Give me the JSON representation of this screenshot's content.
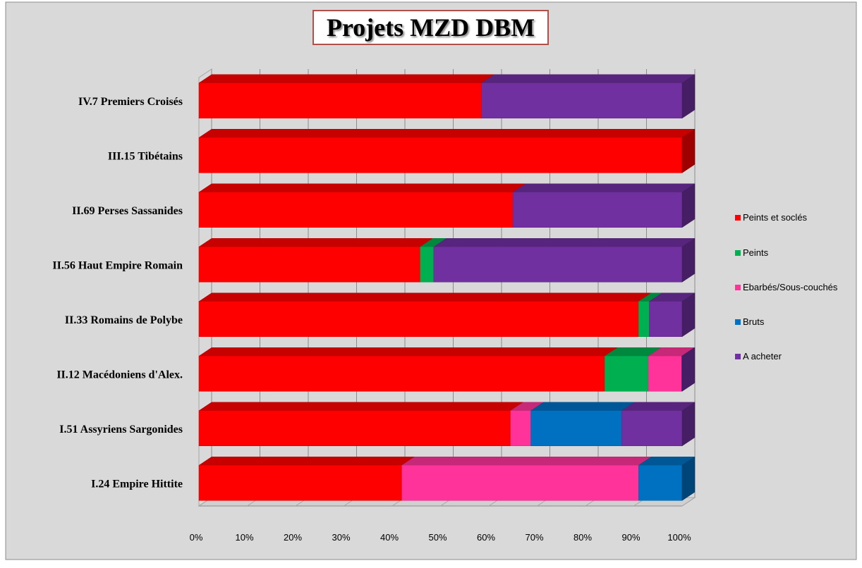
{
  "chart_data": {
    "type": "bar",
    "orientation": "horizontal",
    "stacked": "percent",
    "title": "Projets MZD DBM",
    "categories": [
      "I.24 Empire Hittite",
      "I.51 Assyriens Sargonides",
      "II.12  Macédoniens d'Alex.",
      "II.33 Romains de Polybe",
      "II.56  Haut Empire Romain",
      "II.69  Perses Sassanides",
      "III.15 Tibétains",
      "IV.7 Premiers Croisés"
    ],
    "series": [
      {
        "name": "Peints et soclés",
        "color": "#ff0000",
        "values": [
          42,
          64.5,
          84,
          91,
          45.8,
          65,
          100,
          58.5
        ]
      },
      {
        "name": "Peints",
        "color": "#00b050",
        "values": [
          0,
          0,
          9,
          2.2,
          2.8,
          0,
          0,
          0
        ]
      },
      {
        "name": "Ebarbés/Sous-couchés",
        "color": "#ff3399",
        "values": [
          49,
          4.2,
          6.9,
          0,
          0,
          0,
          0,
          0
        ]
      },
      {
        "name": "Bruts",
        "color": "#0070c0",
        "values": [
          9,
          18.8,
          0,
          0,
          0,
          0,
          0,
          0
        ]
      },
      {
        "name": "A acheter",
        "color": "#7030a0",
        "values": [
          0,
          12.5,
          0.1,
          6.8,
          51.4,
          35,
          0,
          41.5
        ]
      }
    ],
    "xlim": [
      0,
      100
    ],
    "xticks": [
      "0%",
      "10%",
      "20%",
      "30%",
      "40%",
      "50%",
      "60%",
      "70%",
      "80%",
      "90%",
      "100%"
    ],
    "xlabel": "",
    "ylabel": "",
    "grid": true,
    "legend_position": "right"
  }
}
